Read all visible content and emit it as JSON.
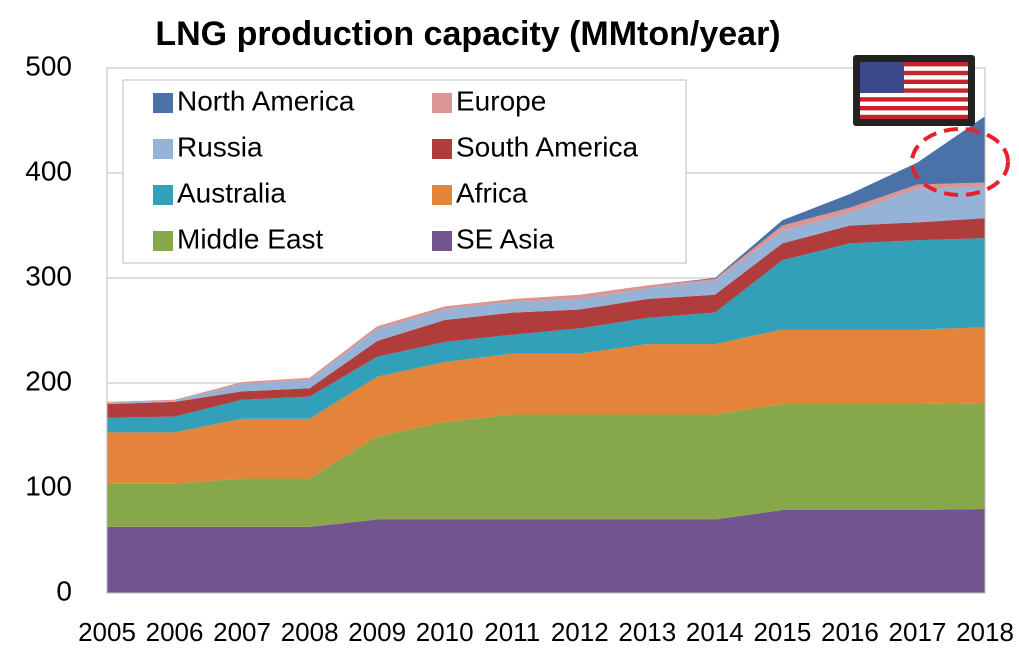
{
  "chart_data": {
    "type": "stacked_area",
    "title": "LNG production capacity (MMton/year)",
    "categories": [
      "2005",
      "2006",
      "2007",
      "2008",
      "2009",
      "2010",
      "2011",
      "2012",
      "2013",
      "2014",
      "2015",
      "2016",
      "2017",
      "2018"
    ],
    "series": [
      {
        "name": "North America",
        "color": "#4a72a8",
        "values": [
          0,
          0,
          0,
          0,
          0,
          0,
          0,
          0,
          0,
          1,
          5,
          13,
          21,
          63
        ]
      },
      {
        "name": "Europe",
        "color": "#d99694",
        "values": [
          1,
          1,
          2,
          2,
          3,
          3,
          3,
          4,
          3,
          2,
          5,
          5,
          4,
          4
        ]
      },
      {
        "name": "Russia",
        "color": "#95b3d7",
        "values": [
          1,
          1,
          7,
          8,
          11,
          10,
          10,
          10,
          10,
          13,
          12,
          12,
          32,
          30
        ]
      },
      {
        "name": "South America",
        "color": "#b03c3c",
        "values": [
          13,
          14,
          8,
          8,
          15,
          21,
          21,
          18,
          18,
          17,
          16,
          17,
          17,
          19
        ]
      },
      {
        "name": "Australia",
        "color": "#31a0b8",
        "values": [
          14,
          15,
          18,
          21,
          19,
          19,
          18,
          24,
          25,
          30,
          66,
          82,
          85,
          85
        ]
      },
      {
        "name": "Africa",
        "color": "#e3843a",
        "values": [
          49,
          49,
          57,
          57,
          57,
          57,
          58,
          58,
          67,
          67,
          71,
          71,
          71,
          72
        ]
      },
      {
        "name": "Middle East",
        "color": "#86a84a",
        "values": [
          41,
          41,
          46,
          46,
          79,
          93,
          100,
          100,
          100,
          100,
          101,
          101,
          101,
          101
        ]
      },
      {
        "name": "SE Asia",
        "color": "#735491",
        "values": [
          63,
          63,
          63,
          63,
          70,
          70,
          70,
          70,
          70,
          70,
          79,
          79,
          79,
          80
        ]
      }
    ],
    "ylim": [
      0,
      500
    ],
    "yticks": [
      0,
      100,
      200,
      300,
      400,
      500
    ],
    "grid": true
  }
}
